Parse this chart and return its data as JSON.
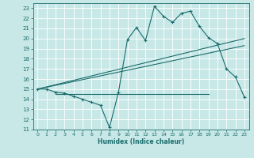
{
  "xlabel": "Humidex (Indice chaleur)",
  "ylabel": "",
  "xlim": [
    -0.5,
    23.5
  ],
  "ylim": [
    11,
    23.5
  ],
  "yticks": [
    11,
    12,
    13,
    14,
    15,
    16,
    17,
    18,
    19,
    20,
    21,
    22,
    23
  ],
  "xticks": [
    0,
    1,
    2,
    3,
    4,
    5,
    6,
    7,
    8,
    9,
    10,
    11,
    12,
    13,
    14,
    15,
    16,
    17,
    18,
    19,
    20,
    21,
    22,
    23
  ],
  "bg_color": "#c8e8e8",
  "line_color": "#1a6b6b",
  "grid_color": "#ffffff",
  "curve1_x": [
    0,
    1,
    2,
    3,
    4,
    5,
    6,
    7,
    8,
    9,
    10,
    11,
    12,
    13,
    14,
    15,
    16,
    17,
    18,
    19,
    20,
    21,
    22,
    23
  ],
  "curve1_y": [
    15.0,
    15.0,
    14.7,
    14.6,
    14.3,
    14.0,
    13.7,
    13.4,
    11.2,
    14.7,
    19.9,
    21.1,
    19.8,
    23.2,
    22.2,
    21.6,
    22.5,
    22.7,
    21.2,
    20.1,
    19.5,
    17.0,
    16.2,
    14.2
  ],
  "line1_x": [
    0,
    23
  ],
  "line1_y": [
    15.0,
    20.0
  ],
  "line2_x": [
    0,
    23
  ],
  "line2_y": [
    15.0,
    19.3
  ],
  "line3_x": [
    2,
    19
  ],
  "line3_y": [
    14.5,
    14.5
  ]
}
